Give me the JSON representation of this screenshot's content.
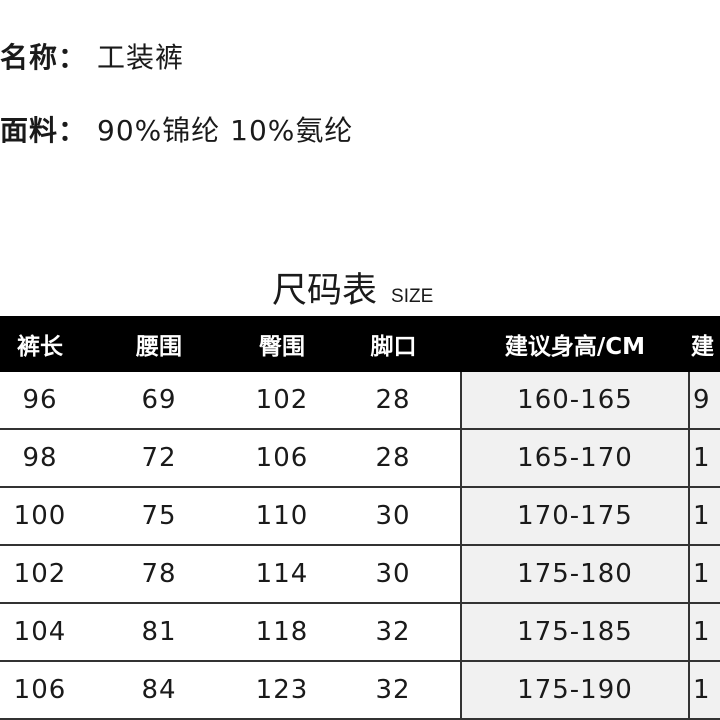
{
  "product": {
    "name_label": "名称：",
    "name_value": "工装裤",
    "fabric_label": "面料：",
    "fabric_value": "90%锦纶 10%氨纶"
  },
  "size_chart": {
    "title": "尺码表",
    "subtitle": "SIZE",
    "headers": [
      "裤长",
      "腰围",
      "臀围",
      "脚口",
      "建议身高/CM",
      "建"
    ],
    "rows": [
      [
        "96",
        "69",
        "102",
        "28",
        "160-165",
        "9"
      ],
      [
        "98",
        "72",
        "106",
        "28",
        "165-170",
        "1"
      ],
      [
        "100",
        "75",
        "110",
        "30",
        "170-175",
        "1"
      ],
      [
        "102",
        "78",
        "114",
        "30",
        "175-180",
        "1"
      ],
      [
        "104",
        "81",
        "118",
        "32",
        "175-185",
        "1"
      ],
      [
        "106",
        "84",
        "123",
        "32",
        "175-190",
        "1"
      ]
    ]
  },
  "colors": {
    "header_bg": "#000000",
    "highlight_col_bg": "#f1f1f1"
  }
}
